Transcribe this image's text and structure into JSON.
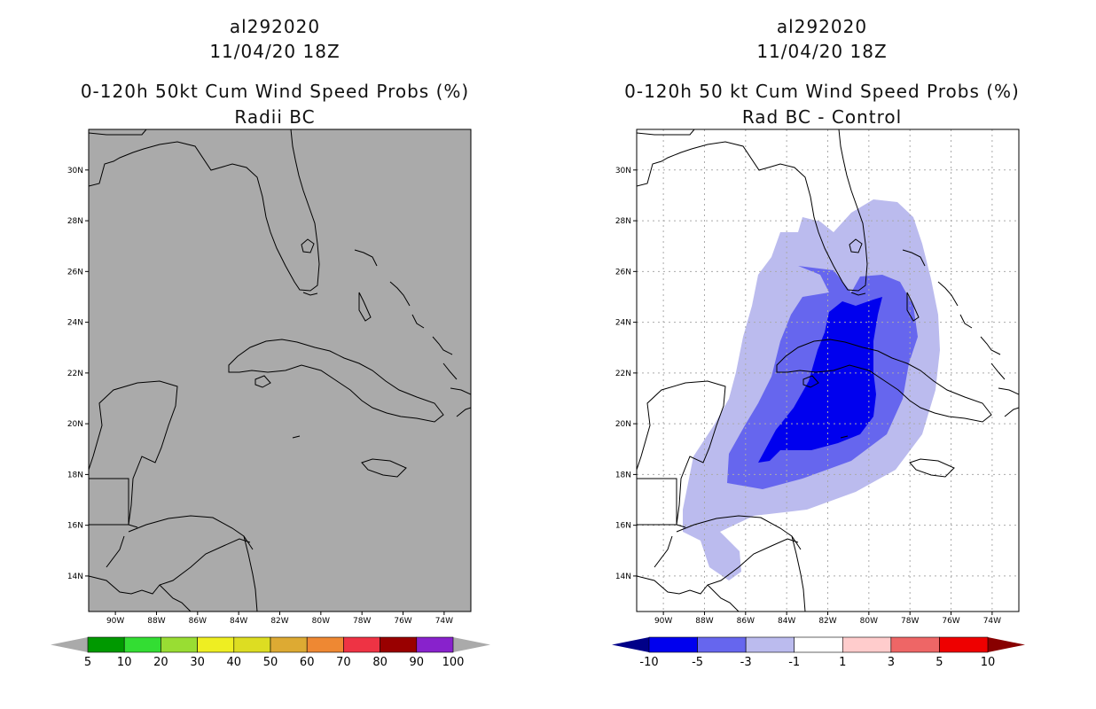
{
  "chart_data": [
    {
      "type": "map",
      "storm_id": "al292020",
      "date": "11/04/20 18Z",
      "title": "0-120h 50kt Cum Wind Speed Probs (%)",
      "subtitle": "Radii BC",
      "lon_range": [
        -91.3,
        -72.7
      ],
      "lat_range": [
        12.6,
        31.6
      ],
      "x_ticks": [
        "90W",
        "88W",
        "86W",
        "84W",
        "82W",
        "80W",
        "78W",
        "76W",
        "74W"
      ],
      "y_ticks": [
        "30N",
        "28N",
        "26N",
        "24N",
        "22N",
        "20N",
        "18N",
        "16N",
        "14N"
      ],
      "grid": false,
      "background": "#aaaaaa",
      "colorbar": {
        "labels": [
          "5",
          "10",
          "20",
          "30",
          "40",
          "50",
          "60",
          "70",
          "80",
          "90",
          "100"
        ],
        "colors": [
          "#009900",
          "#33dd33",
          "#99dd33",
          "#eeee22",
          "#dddd22",
          "#ddaa33",
          "#ee8833",
          "#ee3344",
          "#990000",
          "#8822cc"
        ]
      }
    },
    {
      "type": "map",
      "storm_id": "al292020",
      "date": "11/04/20 18Z",
      "title": "0-120h 50 kt Cum Wind Speed Probs (%)",
      "subtitle": "Rad BC - Control",
      "lon_range": [
        -91.3,
        -72.7
      ],
      "lat_range": [
        12.6,
        31.6
      ],
      "x_ticks": [
        "90W",
        "88W",
        "86W",
        "84W",
        "82W",
        "80W",
        "78W",
        "76W",
        "74W"
      ],
      "y_ticks": [
        "30N",
        "28N",
        "26N",
        "24N",
        "22N",
        "20N",
        "18N",
        "16N",
        "14N"
      ],
      "grid": true,
      "background": "#ffffff",
      "colorbar": {
        "labels": [
          "-10",
          "-5",
          "-3",
          "-1",
          "1",
          "3",
          "5",
          "10"
        ],
        "colors": [
          "#0000ee",
          "#6666ee",
          "#bbbbee",
          "#ffffff",
          "#ffcccc",
          "#ee6666",
          "#ee0000"
        ],
        "low_color": "#000088",
        "high_color": "#880000"
      },
      "difference_levels": [
        -1,
        -3,
        -5
      ]
    }
  ]
}
